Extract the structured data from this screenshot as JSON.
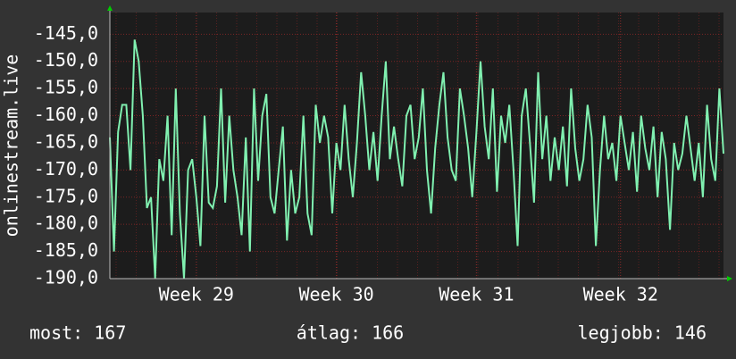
{
  "chart_data": {
    "type": "line",
    "ylabel": "onlinestream.live",
    "categories": [
      null,
      null,
      null,
      null,
      null,
      null,
      null,
      null,
      null,
      null,
      null,
      null,
      null,
      null,
      null,
      null,
      null,
      null,
      null,
      null,
      null,
      "Week 29",
      null,
      null,
      null,
      null,
      null,
      null,
      null,
      null,
      null,
      null,
      null,
      null,
      null,
      null,
      null,
      null,
      null,
      null,
      null,
      null,
      null,
      null,
      null,
      null,
      null,
      null,
      null,
      null,
      null,
      null,
      null,
      null,
      null,
      "Week 30",
      null,
      null,
      null,
      null,
      null,
      null,
      null,
      null,
      null,
      null,
      null,
      null,
      null,
      null,
      null,
      null,
      null,
      null,
      null,
      null,
      null,
      null,
      null,
      null,
      null,
      null,
      null,
      null,
      null,
      null,
      null,
      null,
      null,
      "Week 31",
      null,
      null,
      null,
      null,
      null,
      null,
      null,
      null,
      null,
      null,
      null,
      null,
      null,
      null,
      null,
      null,
      null,
      null,
      null,
      null,
      null,
      null,
      null,
      null,
      null,
      null,
      null,
      null,
      null,
      null,
      null,
      null,
      null,
      null,
      "Week 32",
      null,
      null,
      null,
      null,
      null,
      null,
      null,
      null,
      null,
      null,
      null,
      null,
      null,
      null,
      null,
      null,
      null,
      null,
      null,
      null,
      null,
      null,
      null,
      null,
      null
    ],
    "series": [
      {
        "color": "#80f0b0",
        "values": [
          -164,
          -185,
          -163,
          -158,
          -158,
          -170,
          -146,
          -150,
          -160,
          -177,
          -175,
          -190,
          -168,
          -172,
          -160,
          -182,
          -155,
          -178,
          -190,
          -170,
          -168,
          -175,
          -184,
          -160,
          -176,
          -177,
          -173,
          -155,
          -176,
          -160,
          -170,
          -175,
          -182,
          -164,
          -185,
          -155,
          -172,
          -160,
          -156,
          -175,
          -178,
          -170,
          -162,
          -183,
          -170,
          -178,
          -175,
          -160,
          -178,
          -182,
          -158,
          -165,
          -160,
          -164,
          -178,
          -165,
          -170,
          -158,
          -168,
          -175,
          -165,
          -152,
          -160,
          -170,
          -163,
          -172,
          -160,
          -150,
          -168,
          -162,
          -168,
          -173,
          -160,
          -158,
          -168,
          -164,
          -155,
          -170,
          -178,
          -166,
          -158,
          -152,
          -164,
          -170,
          -172,
          -155,
          -160,
          -166,
          -175,
          -163,
          -150,
          -162,
          -168,
          -155,
          -174,
          -160,
          -165,
          -158,
          -170,
          -184,
          -160,
          -155,
          -165,
          -176,
          -152,
          -168,
          -160,
          -172,
          -164,
          -170,
          -162,
          -173,
          -155,
          -166,
          -172,
          -168,
          -158,
          -164,
          -184,
          -170,
          -160,
          -168,
          -165,
          -172,
          -160,
          -165,
          -170,
          -163,
          -174,
          -160,
          -166,
          -170,
          -162,
          -175,
          -163,
          -168,
          -181,
          -165,
          -170,
          -167,
          -160,
          -166,
          -172,
          -165,
          -175,
          -158,
          -168,
          -172,
          -155,
          -167
        ]
      }
    ],
    "ylim": [
      -190,
      -141
    ],
    "yticks": [
      {
        "value": -145,
        "label": "-145,0"
      },
      {
        "value": -150,
        "label": "-150,0"
      },
      {
        "value": -155,
        "label": "-155,0"
      },
      {
        "value": -160,
        "label": "-160,0"
      },
      {
        "value": -165,
        "label": "-165,0"
      },
      {
        "value": -170,
        "label": "-170,0"
      },
      {
        "value": -175,
        "label": "-175,0"
      },
      {
        "value": -180,
        "label": "-180,0"
      },
      {
        "value": -185,
        "label": "-185,0"
      },
      {
        "value": -190,
        "label": "-190,0"
      }
    ],
    "grid": true,
    "annotations": [
      "most: 167",
      "átlag: 166",
      "legjobb: 146"
    ]
  }
}
